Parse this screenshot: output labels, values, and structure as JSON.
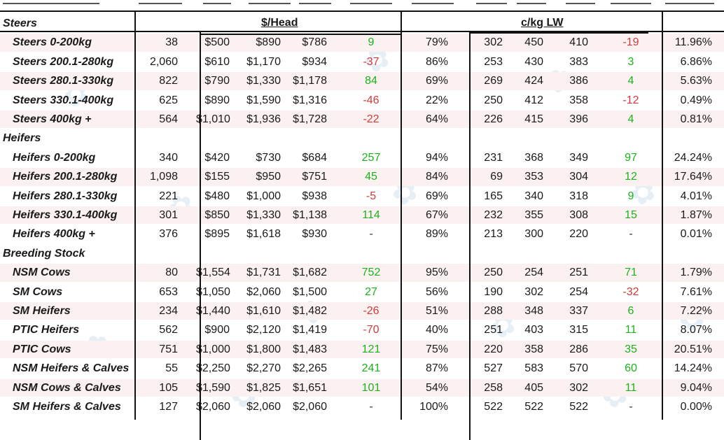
{
  "header": {
    "head_group_title": "$/Head",
    "lw_group_title": "c/kg LW"
  },
  "sections": [
    {
      "title": "Steers",
      "rows": [
        {
          "label": "Steers 0-200kg",
          "yard": "38",
          "hmin": "$500",
          "hmax": "$890",
          "havg": "$786",
          "hchg": "9",
          "hchg_dir": "pos",
          "pct": "79%",
          "lmin": "302",
          "lmax": "450",
          "lavg": "410",
          "lchg": "-19",
          "lchg_dir": "neg",
          "share": "11.96%"
        },
        {
          "label": "Steers 200.1-280kg",
          "yard": "2,060",
          "hmin": "$610",
          "hmax": "$1,170",
          "havg": "$934",
          "hchg": "-37",
          "hchg_dir": "neg",
          "pct": "86%",
          "lmin": "253",
          "lmax": "430",
          "lavg": "383",
          "lchg": "3",
          "lchg_dir": "pos",
          "share": "6.86%"
        },
        {
          "label": "Steers 280.1-330kg",
          "yard": "822",
          "hmin": "$790",
          "hmax": "$1,330",
          "havg": "$1,178",
          "hchg": "84",
          "hchg_dir": "pos",
          "pct": "69%",
          "lmin": "269",
          "lmax": "424",
          "lavg": "386",
          "lchg": "4",
          "lchg_dir": "pos",
          "share": "5.63%"
        },
        {
          "label": "Steers 330.1-400kg",
          "yard": "625",
          "hmin": "$890",
          "hmax": "$1,590",
          "havg": "$1,316",
          "hchg": "-46",
          "hchg_dir": "neg",
          "pct": "22%",
          "lmin": "250",
          "lmax": "412",
          "lavg": "358",
          "lchg": "-12",
          "lchg_dir": "neg",
          "share": "0.49%"
        },
        {
          "label": "Steers 400kg +",
          "yard": "564",
          "hmin": "$1,010",
          "hmax": "$1,936",
          "havg": "$1,728",
          "hchg": "-22",
          "hchg_dir": "neg",
          "pct": "64%",
          "lmin": "226",
          "lmax": "415",
          "lavg": "396",
          "lchg": "4",
          "lchg_dir": "pos",
          "share": "0.81%"
        }
      ]
    },
    {
      "title": "Heifers",
      "rows": [
        {
          "label": "Heifers 0-200kg",
          "yard": "340",
          "hmin": "$420",
          "hmax": "$730",
          "havg": "$684",
          "hchg": "257",
          "hchg_dir": "pos",
          "pct": "94%",
          "lmin": "231",
          "lmax": "368",
          "lavg": "349",
          "lchg": "97",
          "lchg_dir": "pos",
          "share": "24.24%"
        },
        {
          "label": "Heifers 200.1-280kg",
          "yard": "1,098",
          "hmin": "$155",
          "hmax": "$950",
          "havg": "$751",
          "hchg": "45",
          "hchg_dir": "pos",
          "pct": "84%",
          "lmin": "69",
          "lmax": "353",
          "lavg": "304",
          "lchg": "12",
          "lchg_dir": "pos",
          "share": "17.64%"
        },
        {
          "label": "Heifers 280.1-330kg",
          "yard": "221",
          "hmin": "$480",
          "hmax": "$1,000",
          "havg": "$938",
          "hchg": "-5",
          "hchg_dir": "neg",
          "pct": "69%",
          "lmin": "165",
          "lmax": "340",
          "lavg": "318",
          "lchg": "9",
          "lchg_dir": "pos",
          "share": "4.01%"
        },
        {
          "label": "Heifers 330.1-400kg",
          "yard": "301",
          "hmin": "$850",
          "hmax": "$1,330",
          "havg": "$1,138",
          "hchg": "114",
          "hchg_dir": "pos",
          "pct": "67%",
          "lmin": "232",
          "lmax": "355",
          "lavg": "308",
          "lchg": "15",
          "lchg_dir": "pos",
          "share": "1.87%"
        },
        {
          "label": "Heifers 400kg +",
          "yard": "376",
          "hmin": "$895",
          "hmax": "$1,618",
          "havg": "$930",
          "hchg": "-",
          "hchg_dir": "dash",
          "pct": "89%",
          "lmin": "213",
          "lmax": "300",
          "lavg": "220",
          "lchg": "-",
          "lchg_dir": "dash",
          "share": "0.01%"
        }
      ]
    },
    {
      "title": "Breeding Stock",
      "rows": [
        {
          "label": "NSM Cows",
          "yard": "80",
          "hmin": "$1,554",
          "hmax": "$1,731",
          "havg": "$1,682",
          "hchg": "752",
          "hchg_dir": "pos",
          "pct": "95%",
          "lmin": "250",
          "lmax": "254",
          "lavg": "251",
          "lchg": "71",
          "lchg_dir": "pos",
          "share": "1.79%"
        },
        {
          "label": "SM Cows",
          "yard": "653",
          "hmin": "$1,050",
          "hmax": "$2,060",
          "havg": "$1,500",
          "hchg": "27",
          "hchg_dir": "pos",
          "pct": "56%",
          "lmin": "190",
          "lmax": "302",
          "lavg": "254",
          "lchg": "-32",
          "lchg_dir": "neg",
          "share": "7.61%"
        },
        {
          "label": "SM Heifers",
          "yard": "234",
          "hmin": "$1,440",
          "hmax": "$1,610",
          "havg": "$1,482",
          "hchg": "-26",
          "hchg_dir": "neg",
          "pct": "51%",
          "lmin": "288",
          "lmax": "348",
          "lavg": "337",
          "lchg": "6",
          "lchg_dir": "pos",
          "share": "7.22%"
        },
        {
          "label": "PTIC Heifers",
          "yard": "562",
          "hmin": "$900",
          "hmax": "$2,120",
          "havg": "$1,419",
          "hchg": "-70",
          "hchg_dir": "neg",
          "pct": "40%",
          "lmin": "251",
          "lmax": "403",
          "lavg": "315",
          "lchg": "11",
          "lchg_dir": "pos",
          "share": "8.07%"
        },
        {
          "label": "PTIC Cows",
          "yard": "751",
          "hmin": "$1,000",
          "hmax": "$1,800",
          "havg": "$1,483",
          "hchg": "121",
          "hchg_dir": "pos",
          "pct": "75%",
          "lmin": "220",
          "lmax": "358",
          "lavg": "286",
          "lchg": "35",
          "lchg_dir": "pos",
          "share": "20.51%"
        },
        {
          "label": "NSM Heifers & Calves",
          "yard": "55",
          "hmin": "$2,250",
          "hmax": "$2,270",
          "havg": "$2,265",
          "hchg": "241",
          "hchg_dir": "pos",
          "pct": "87%",
          "lmin": "527",
          "lmax": "583",
          "lavg": "570",
          "lchg": "60",
          "lchg_dir": "pos",
          "share": "14.24%"
        },
        {
          "label": "NSM Cows & Calves",
          "yard": "105",
          "hmin": "$1,590",
          "hmax": "$1,825",
          "havg": "$1,651",
          "hchg": "101",
          "hchg_dir": "pos",
          "pct": "54%",
          "lmin": "258",
          "lmax": "405",
          "lavg": "302",
          "lchg": "11",
          "lchg_dir": "pos",
          "share": "9.04%"
        },
        {
          "label": "SM Heifers & Calves",
          "yard": "127",
          "hmin": "$2,060",
          "hmax": "$2,060",
          "havg": "$2,060",
          "hchg": "-",
          "hchg_dir": "dash",
          "pct": "100%",
          "lmin": "522",
          "lmax": "522",
          "lavg": "522",
          "lchg": "-",
          "lchg_dir": "dash",
          "share": "0.00%"
        }
      ]
    }
  ],
  "colors": {
    "positive": "#1bb31b",
    "negative": "#d23b3b",
    "band": "#fbf1f1",
    "rule": "#111111"
  },
  "watermark_icon": "brand-logo-icon"
}
